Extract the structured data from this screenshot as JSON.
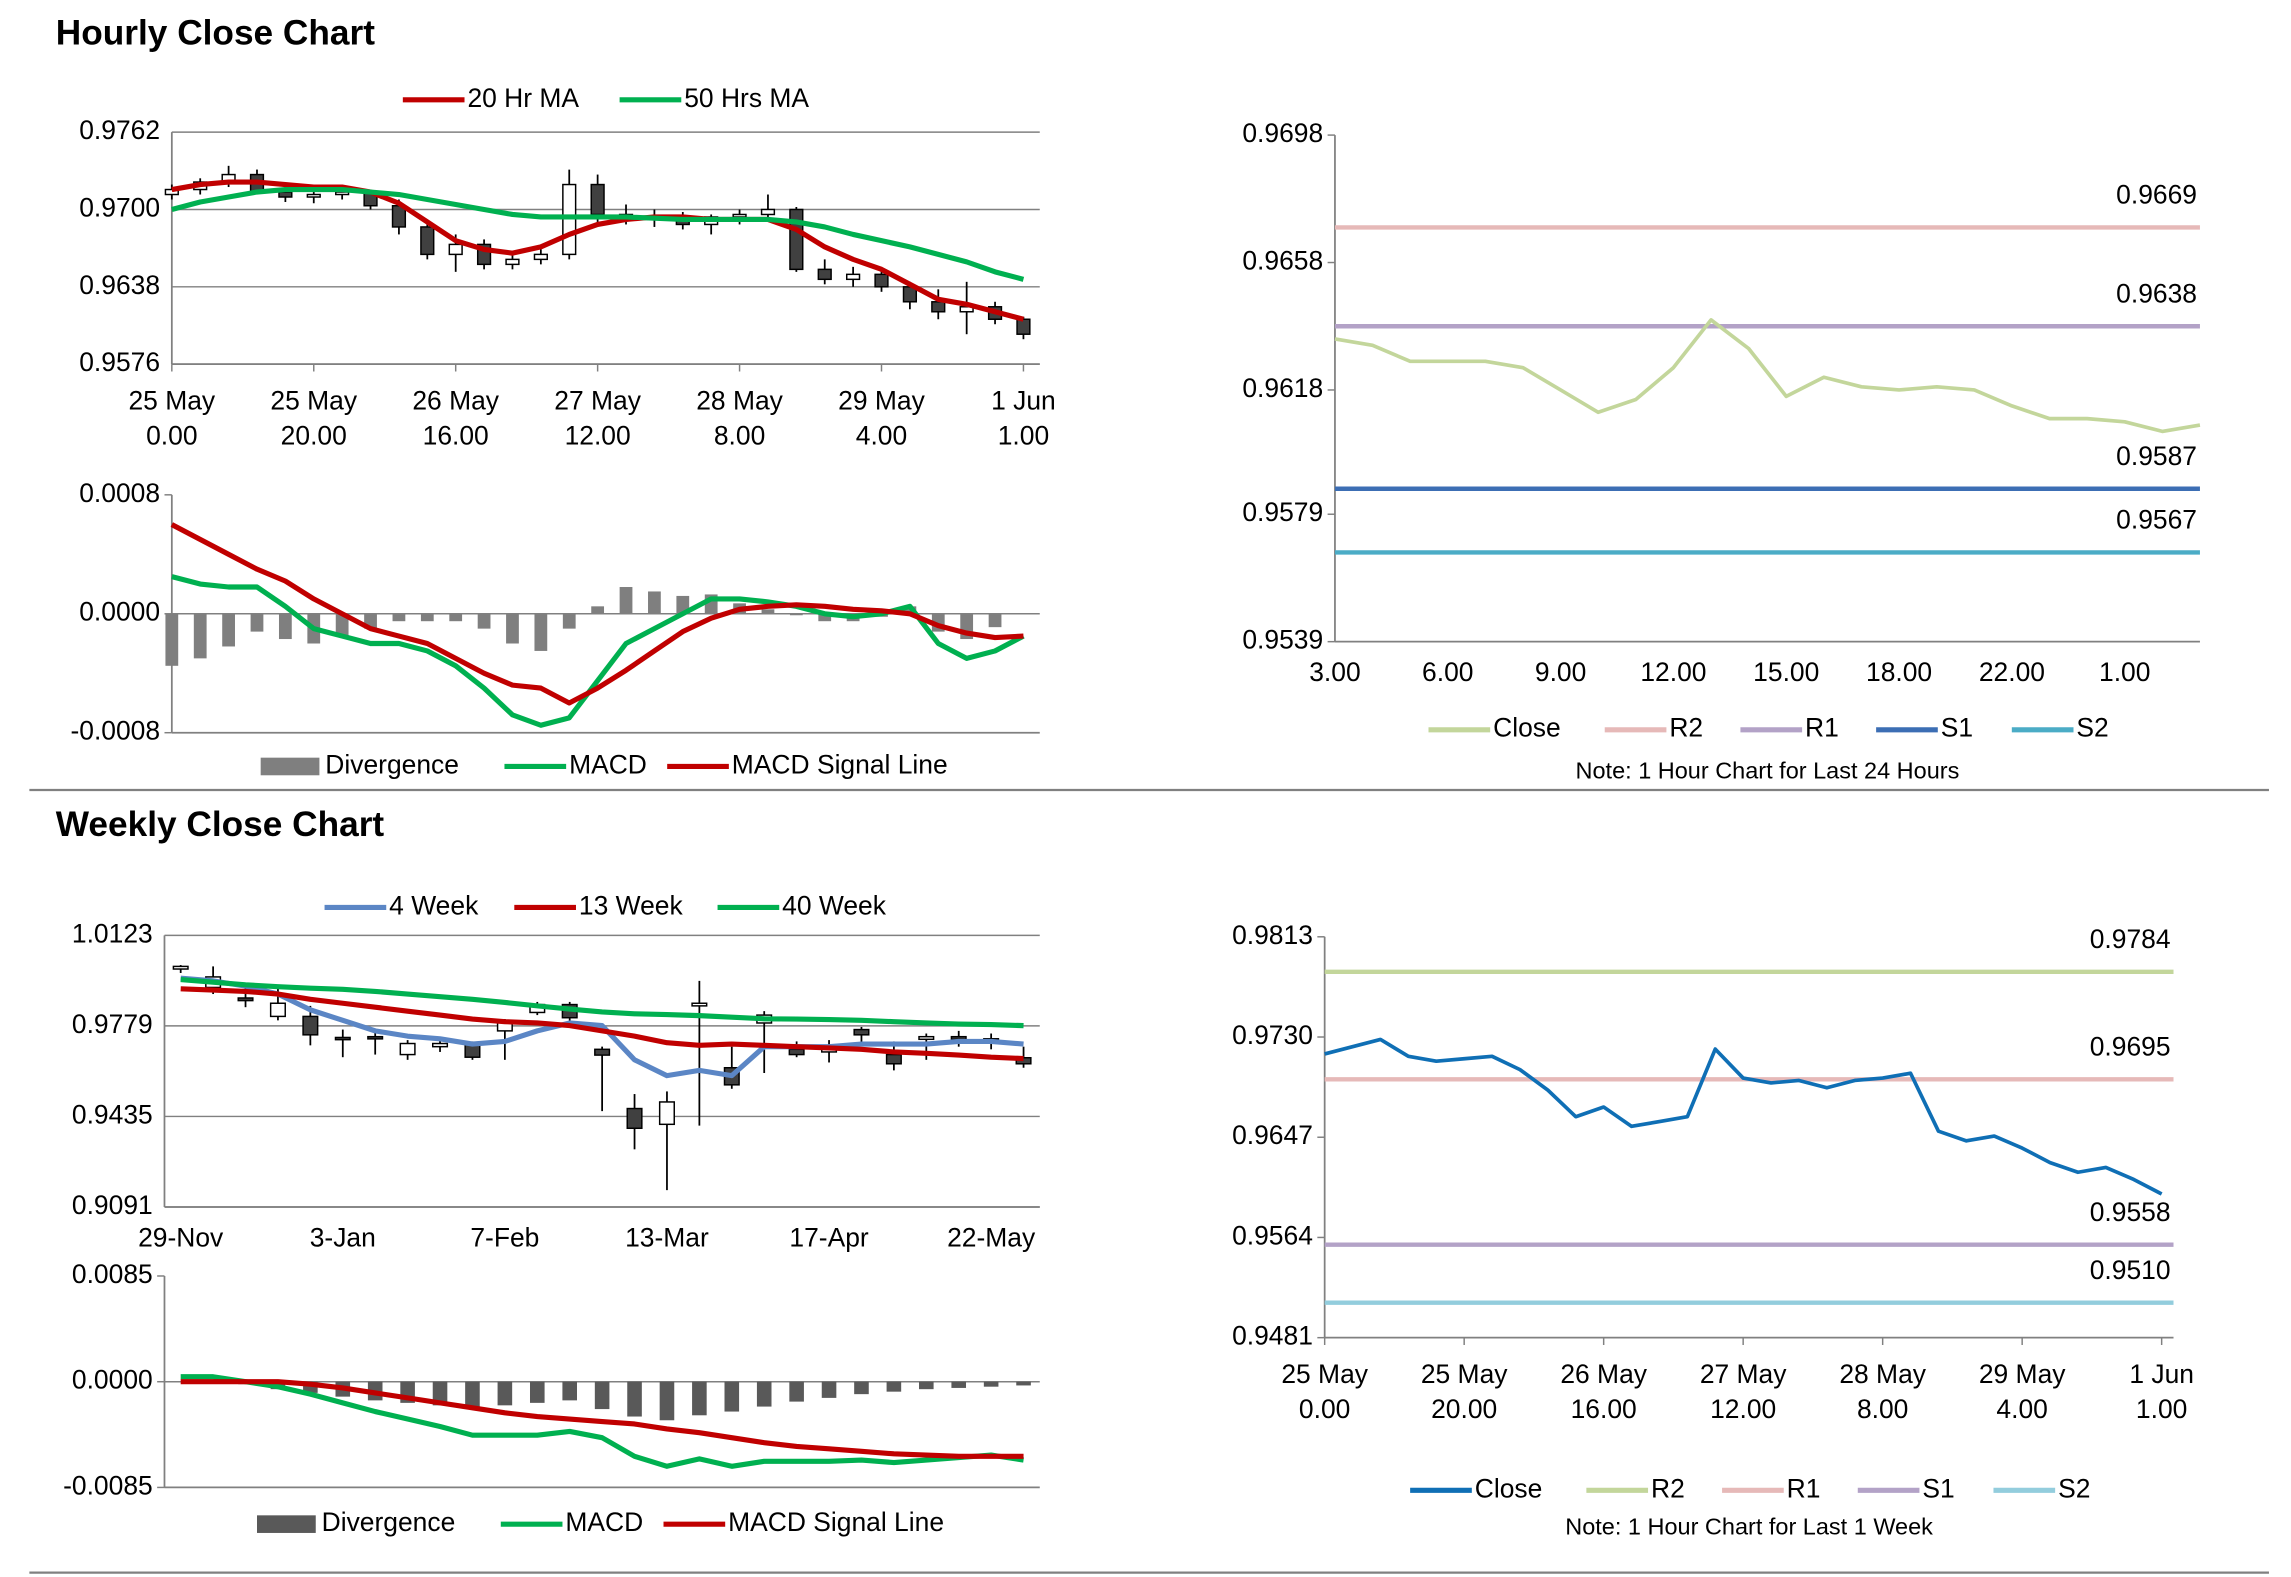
{
  "headings": [
    "Hourly Close Chart",
    "Weekly Close Chart"
  ],
  "chart_data": [
    {
      "type": "candlestick",
      "legend": "top",
      "grid": true,
      "up_color": "#ffffff",
      "down_color": "#404040",
      "x": [
        0,
        4,
        8,
        12,
        16,
        20,
        24,
        28,
        32,
        36,
        40,
        44,
        48,
        52,
        56,
        60,
        64,
        68,
        72,
        76,
        80,
        84,
        88,
        92,
        96,
        100,
        104,
        108,
        112,
        116,
        120
      ],
      "xlim": [
        0,
        122.3
      ],
      "xticks": [
        {
          "value": 0,
          "label": [
            "25 May",
            "0.00"
          ]
        },
        {
          "value": 20,
          "label": [
            "25 May",
            "20.00"
          ]
        },
        {
          "value": 40,
          "label": [
            "26 May",
            "16.00"
          ]
        },
        {
          "value": 60,
          "label": [
            "27 May",
            "12.00"
          ]
        },
        {
          "value": 80,
          "label": [
            "28 May",
            "8.00"
          ]
        },
        {
          "value": 100,
          "label": [
            "29 May",
            "4.00"
          ]
        },
        {
          "value": 120,
          "label": [
            "1 Jun",
            "1.00"
          ]
        }
      ],
      "ylim": [
        0.9576,
        0.9762
      ],
      "yticks": [
        0.9762,
        {
          "value": 0.97,
          "label": "0.9700"
        },
        0.9638,
        0.9576
      ],
      "open": [
        0.9712,
        0.9716,
        0.9722,
        0.9728,
        0.9714,
        0.971,
        0.9712,
        0.9714,
        0.9703,
        0.9686,
        0.9664,
        0.9672,
        0.9656,
        0.966,
        0.9664,
        0.972,
        0.9696,
        0.9692,
        0.9694,
        0.9688,
        0.9694,
        0.9696,
        0.97,
        0.9652,
        0.9644,
        0.9648,
        0.9638,
        0.9626,
        0.9618,
        0.9622,
        0.9612
      ],
      "high": [
        0.972,
        0.9725,
        0.9735,
        0.9732,
        0.972,
        0.9718,
        0.9718,
        0.9716,
        0.9708,
        0.969,
        0.968,
        0.9676,
        0.9664,
        0.9668,
        0.9732,
        0.9728,
        0.9704,
        0.97,
        0.9698,
        0.9696,
        0.97,
        0.9712,
        0.9702,
        0.966,
        0.9654,
        0.9652,
        0.9642,
        0.9636,
        0.9642,
        0.9626,
        0.9614
      ],
      "low": [
        0.9708,
        0.9712,
        0.9718,
        0.9712,
        0.9706,
        0.9705,
        0.9708,
        0.97,
        0.968,
        0.966,
        0.965,
        0.9652,
        0.9652,
        0.9656,
        0.966,
        0.969,
        0.9688,
        0.9686,
        0.9684,
        0.968,
        0.9688,
        0.969,
        0.965,
        0.964,
        0.9638,
        0.9634,
        0.962,
        0.9612,
        0.96,
        0.9608,
        0.9596
      ],
      "close": [
        0.9716,
        0.9722,
        0.9728,
        0.9714,
        0.971,
        0.9712,
        0.9714,
        0.9703,
        0.9686,
        0.9664,
        0.9672,
        0.9656,
        0.966,
        0.9664,
        0.972,
        0.9696,
        0.9692,
        0.9694,
        0.9688,
        0.9694,
        0.9696,
        0.97,
        0.9652,
        0.9644,
        0.9648,
        0.9638,
        0.9626,
        0.9618,
        0.9622,
        0.9612,
        0.96
      ],
      "series": [
        {
          "name": "20 Hr MA",
          "color": "#c00000",
          "values": [
            0.9716,
            0.972,
            0.9722,
            0.9722,
            0.972,
            0.9718,
            0.9718,
            0.9714,
            0.9705,
            0.969,
            0.9675,
            0.9668,
            0.9665,
            0.967,
            0.968,
            0.9688,
            0.9692,
            0.9694,
            0.9694,
            0.9692,
            0.9692,
            0.9692,
            0.9684,
            0.967,
            0.966,
            0.9652,
            0.964,
            0.9628,
            0.9624,
            0.9618,
            0.9612
          ]
        },
        {
          "name": "50 Hrs MA",
          "color": "#00b050",
          "values": [
            0.97,
            0.9706,
            0.971,
            0.9714,
            0.9716,
            0.9716,
            0.9716,
            0.9714,
            0.9712,
            0.9708,
            0.9704,
            0.97,
            0.9696,
            0.9694,
            0.9694,
            0.9694,
            0.9694,
            0.9693,
            0.9692,
            0.9692,
            0.9692,
            0.9692,
            0.969,
            0.9686,
            0.968,
            0.9675,
            0.967,
            0.9664,
            0.9658,
            0.965,
            0.9644
          ]
        }
      ]
    },
    {
      "type": "macd",
      "legend": "bottom",
      "x": [
        0,
        4,
        8,
        12,
        16,
        20,
        24,
        28,
        32,
        36,
        40,
        44,
        48,
        52,
        56,
        60,
        64,
        68,
        72,
        76,
        80,
        84,
        88,
        92,
        96,
        100,
        104,
        108,
        112,
        116,
        120
      ],
      "xlim": [
        0,
        122.3
      ],
      "ylim": [
        -0.0008,
        0.0008
      ],
      "yticks": [
        0.0008,
        {
          "value": 0,
          "label": "0.0000"
        },
        -0.0008
      ],
      "series": [
        {
          "name": "Divergence",
          "mark": "bar",
          "color": "#7f7f7f",
          "values": [
            -0.00035,
            -0.0003,
            -0.00022,
            -0.00012,
            -0.00017,
            -0.0002,
            -0.00015,
            -0.0001,
            -5e-05,
            -5e-05,
            -5e-05,
            -0.0001,
            -0.0002,
            -0.00025,
            -0.0001,
            5e-05,
            0.00018,
            0.00015,
            0.00012,
            0.00013,
            7e-05,
            3e-05,
            -1e-05,
            -5e-05,
            -5e-05,
            -2e-05,
            5e-05,
            -0.00012,
            -0.00017,
            -9e-05,
            0
          ]
        },
        {
          "name": "MACD",
          "color": "#00b050",
          "values": [
            0.00025,
            0.0002,
            0.00018,
            0.00018,
            5e-05,
            -0.0001,
            -0.00015,
            -0.0002,
            -0.0002,
            -0.00025,
            -0.00035,
            -0.0005,
            -0.00068,
            -0.00075,
            -0.0007,
            -0.00045,
            -0.0002,
            -0.0001,
            0,
            0.0001,
            0.0001,
            8e-05,
            5e-05,
            0,
            -2e-05,
            0,
            5e-05,
            -0.0002,
            -0.0003,
            -0.00025,
            -0.00015
          ]
        },
        {
          "name": "MACD Signal Line",
          "color": "#c00000",
          "values": [
            0.0006,
            0.0005,
            0.0004,
            0.0003,
            0.00022,
            0.0001,
            0,
            -0.0001,
            -0.00015,
            -0.0002,
            -0.0003,
            -0.0004,
            -0.00048,
            -0.0005,
            -0.0006,
            -0.0005,
            -0.00038,
            -0.00025,
            -0.00012,
            -3e-05,
            3e-05,
            5e-05,
            6e-05,
            5e-05,
            3e-05,
            2e-05,
            0,
            -8e-05,
            -0.00013,
            -0.00016,
            -0.00015
          ]
        }
      ]
    },
    {
      "type": "line",
      "legend": "bottom",
      "note": "Note: 1 Hour Chart for Last 24 Hours",
      "categories": [
        "3.00",
        null,
        null,
        "6.00",
        null,
        null,
        "9.00",
        null,
        null,
        "12.00",
        null,
        null,
        "15.00",
        null,
        null,
        "18.00",
        null,
        null,
        "22.00",
        null,
        null,
        "1.00",
        null,
        null
      ],
      "ylim": [
        0.9539,
        0.9698
      ],
      "yticks": [
        0.9698,
        0.9658,
        0.9618,
        0.9579,
        0.9539
      ],
      "series": [
        {
          "name": "Close",
          "color": "#c3d69b",
          "values": [
            0.9634,
            0.9632,
            0.9627,
            0.9627,
            0.9627,
            0.9625,
            0.9618,
            0.9611,
            0.9615,
            0.9625,
            0.964,
            0.9631,
            0.9616,
            0.9622,
            0.9619,
            0.9618,
            0.9619,
            0.9618,
            0.9613,
            0.9609,
            0.9609,
            0.9608,
            0.9605,
            0.9607
          ]
        },
        {
          "name": "R2",
          "color": "#e6b9b8",
          "value": 0.9669
        },
        {
          "name": "R1",
          "color": "#b3a2c7",
          "value": 0.9638
        },
        {
          "name": "S1",
          "color": "#3c6eb4",
          "value": 0.9587
        },
        {
          "name": "S2",
          "color": "#4bacc6",
          "value": 0.9567
        }
      ]
    },
    {
      "type": "candlestick",
      "legend": "top",
      "grid": true,
      "up_color": "#ffffff",
      "down_color": "#404040",
      "categories": [
        "29-Nov",
        null,
        null,
        null,
        null,
        "3-Jan",
        null,
        null,
        null,
        null,
        "7-Feb",
        null,
        null,
        null,
        null,
        "13-Mar",
        null,
        null,
        null,
        null,
        "17-Apr",
        null,
        null,
        null,
        null,
        "22-May",
        null
      ],
      "ylim": [
        0.9091,
        1.0123
      ],
      "yticks": [
        1.0123,
        0.9779,
        0.9435,
        0.9091
      ],
      "open": [
        0.9995,
        0.9925,
        0.9885,
        0.9815,
        0.9815,
        0.9735,
        0.9738,
        0.967,
        0.97,
        0.9712,
        0.976,
        0.983,
        0.986,
        0.969,
        0.9465,
        0.9405,
        0.9855,
        0.962,
        0.979,
        0.969,
        0.968,
        0.9765,
        0.967,
        0.9728,
        0.9738,
        0.973,
        0.9658
      ],
      "high": [
        1.001,
        1.0005,
        0.994,
        0.993,
        0.9855,
        0.9765,
        0.9765,
        0.9725,
        0.973,
        0.972,
        0.9805,
        0.987,
        0.987,
        0.97,
        0.952,
        0.953,
        0.995,
        0.97,
        0.9835,
        0.972,
        0.9725,
        0.9775,
        0.972,
        0.975,
        0.976,
        0.975,
        0.97
      ],
      "low": [
        0.998,
        0.99,
        0.985,
        0.98,
        0.9705,
        0.966,
        0.967,
        0.965,
        0.968,
        0.965,
        0.965,
        0.982,
        0.978,
        0.9455,
        0.931,
        0.9155,
        0.94,
        0.954,
        0.96,
        0.966,
        0.964,
        0.971,
        0.961,
        0.965,
        0.97,
        0.969,
        0.962
      ],
      "close": [
        1.0005,
        0.9965,
        0.9875,
        0.9865,
        0.9745,
        0.9728,
        0.9732,
        0.9712,
        0.9712,
        0.966,
        0.9795,
        0.986,
        0.981,
        0.9668,
        0.939,
        0.949,
        0.9865,
        0.9555,
        0.982,
        0.967,
        0.9698,
        0.9745,
        0.9635,
        0.9738,
        0.9728,
        0.972,
        0.9635
      ],
      "series": [
        {
          "name": "4 Week",
          "color": "#5b86c5",
          "values": [
            0.996,
            0.995,
            0.993,
            0.99,
            0.984,
            0.98,
            0.976,
            0.974,
            0.973,
            0.971,
            0.972,
            0.976,
            0.979,
            0.978,
            0.965,
            0.959,
            0.961,
            0.959,
            0.97,
            0.97,
            0.97,
            0.971,
            0.971,
            0.971,
            0.972,
            0.972,
            0.971
          ]
        },
        {
          "name": "13 Week",
          "color": "#c00000",
          "values": [
            0.992,
            0.9915,
            0.991,
            0.99,
            0.988,
            0.9865,
            0.985,
            0.9835,
            0.982,
            0.9805,
            0.9795,
            0.979,
            0.978,
            0.976,
            0.974,
            0.9715,
            0.9705,
            0.971,
            0.9705,
            0.97,
            0.9695,
            0.969,
            0.968,
            0.9675,
            0.9668,
            0.966,
            0.9655
          ]
        },
        {
          "name": "40 Week",
          "color": "#00b050",
          "values": [
            0.9955,
            0.9945,
            0.9935,
            0.9928,
            0.9922,
            0.9918,
            0.991,
            0.99,
            0.989,
            0.988,
            0.9868,
            0.9855,
            0.9843,
            0.9832,
            0.9825,
            0.9822,
            0.9818,
            0.9812,
            0.9806,
            0.9805,
            0.9803,
            0.98,
            0.9795,
            0.979,
            0.9786,
            0.9784,
            0.978
          ]
        }
      ]
    },
    {
      "type": "macd",
      "legend": "bottom",
      "ylim": [
        -0.0085,
        0.0085
      ],
      "yticks": [
        0.0085,
        {
          "value": 0,
          "label": "0.0000"
        },
        -0.0085
      ],
      "series": [
        {
          "name": "Divergence",
          "mark": "bar",
          "color": "#595959",
          "values": [
            0,
            0,
            -0.0002,
            -0.0006,
            -0.0009,
            -0.0012,
            -0.0015,
            -0.0017,
            -0.0019,
            -0.0021,
            -0.0019,
            -0.0017,
            -0.0015,
            -0.0022,
            -0.0028,
            -0.0031,
            -0.0027,
            -0.0024,
            -0.002,
            -0.0016,
            -0.0013,
            -0.001,
            -0.0008,
            -0.0006,
            -0.0005,
            -0.0004,
            -0.0003
          ]
        },
        {
          "name": "MACD",
          "color": "#00b050",
          "values": [
            0.0004,
            0.0004,
            0,
            -0.0004,
            -0.001,
            -0.0017,
            -0.0024,
            -0.003,
            -0.0036,
            -0.0043,
            -0.0043,
            -0.0043,
            -0.004,
            -0.0045,
            -0.006,
            -0.0068,
            -0.0062,
            -0.0068,
            -0.0064,
            -0.0064,
            -0.0064,
            -0.0063,
            -0.0065,
            -0.0063,
            -0.0061,
            -0.0059,
            -0.0063
          ]
        },
        {
          "name": "MACD Signal Line",
          "color": "#c00000",
          "values": [
            0,
            0,
            0,
            0,
            -0.0002,
            -0.0005,
            -0.0009,
            -0.0013,
            -0.0017,
            -0.0021,
            -0.0025,
            -0.0028,
            -0.003,
            -0.0032,
            -0.0034,
            -0.0038,
            -0.0041,
            -0.0045,
            -0.0049,
            -0.0052,
            -0.0054,
            -0.0056,
            -0.0058,
            -0.0059,
            -0.006,
            -0.006,
            -0.006
          ]
        }
      ]
    },
    {
      "type": "line",
      "legend": "bottom",
      "note": "Note: 1 Hour Chart for Last 1 Week",
      "x": [
        0,
        4,
        8,
        12,
        16,
        20,
        24,
        28,
        32,
        36,
        40,
        44,
        48,
        52,
        56,
        60,
        64,
        68,
        72,
        76,
        80,
        84,
        88,
        92,
        96,
        100,
        104,
        108,
        112,
        116,
        120
      ],
      "xlim": [
        0,
        121.7
      ],
      "xticks": [
        {
          "value": 0,
          "label": [
            "25 May",
            "0.00"
          ]
        },
        {
          "value": 20,
          "label": [
            "25 May",
            "20.00"
          ]
        },
        {
          "value": 40,
          "label": [
            "26 May",
            "16.00"
          ]
        },
        {
          "value": 60,
          "label": [
            "27 May",
            "12.00"
          ]
        },
        {
          "value": 80,
          "label": [
            "28 May",
            "8.00"
          ]
        },
        {
          "value": 100,
          "label": [
            "29 May",
            "4.00"
          ]
        },
        {
          "value": 120,
          "label": [
            "1 Jun",
            "1.00"
          ]
        }
      ],
      "ylim": [
        0.9481,
        0.9813
      ],
      "yticks": [
        0.9813,
        {
          "value": 0.973,
          "label": "0.9730"
        },
        0.9647,
        0.9564,
        0.9481
      ],
      "series": [
        {
          "name": "Close",
          "color": "#0f6fb5",
          "values": [
            0.9716,
            0.9722,
            0.9728,
            0.9714,
            0.971,
            0.9712,
            0.9714,
            0.9703,
            0.9686,
            0.9664,
            0.9672,
            0.9656,
            0.966,
            0.9664,
            0.972,
            0.9696,
            0.9692,
            0.9694,
            0.9688,
            0.9694,
            0.9696,
            0.97,
            0.9652,
            0.9644,
            0.9648,
            0.9638,
            0.9626,
            0.9618,
            0.9622,
            0.9612,
            0.96
          ]
        },
        {
          "name": "R2",
          "color": "#c3d69b",
          "value": 0.9784
        },
        {
          "name": "R1",
          "color": "#e6b9b8",
          "value": 0.9695
        },
        {
          "name": "S1",
          "color": "#b3a2c7",
          "value": 0.9558
        },
        {
          "name": "S2",
          "color": "#93cddd",
          "value": 0.951,
          "value_label": "0.9510"
        }
      ]
    }
  ]
}
